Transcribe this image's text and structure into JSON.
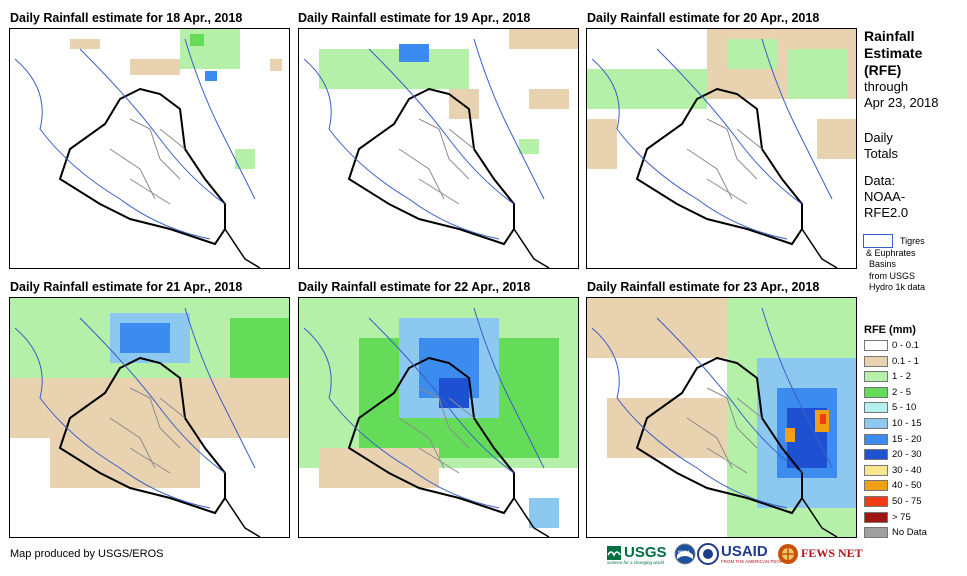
{
  "panels": [
    {
      "title": "Daily Rainfall estimate for 18 Apr., 2018"
    },
    {
      "title": "Daily Rainfall estimate for 19 Apr., 2018"
    },
    {
      "title": "Daily Rainfall estimate for 20 Apr., 2018"
    },
    {
      "title": "Daily Rainfall estimate for 21 Apr., 2018"
    },
    {
      "title": "Daily Rainfall estimate for 22 Apr., 2018"
    },
    {
      "title": "Daily Rainfall estimate for 23 Apr., 2018"
    }
  ],
  "sidebar": {
    "heading_line1": "Rainfall",
    "heading_line2": "Estimate",
    "heading_line3": "(RFE)",
    "through": "through",
    "date": "Apr 23, 2018",
    "daily": "Daily",
    "totals": "Totals",
    "data_label": "Data:",
    "data_src1": "NOAA-",
    "data_src2": "RFE2.0",
    "basin_line1": "Tigres",
    "basin_line2": "& Euphrates",
    "basin_line3": "Basins",
    "basin_line4": "from USGS",
    "basin_line5": "Hydro 1k data"
  },
  "legend": {
    "title": "RFE (mm)",
    "items": [
      {
        "label": "0 - 0.1",
        "color": "#ffffff"
      },
      {
        "label": "0.1 - 1",
        "color": "#e8d2b0"
      },
      {
        "label": "1 - 2",
        "color": "#b4f0a8"
      },
      {
        "label": "2 - 5",
        "color": "#64dc5a"
      },
      {
        "label": "5 - 10",
        "color": "#b4f0f0"
      },
      {
        "label": "10 - 15",
        "color": "#8cc8f0"
      },
      {
        "label": "15 - 20",
        "color": "#3c8cf0"
      },
      {
        "label": "20 - 30",
        "color": "#1e50d2"
      },
      {
        "label": "30 - 40",
        "color": "#fae68c"
      },
      {
        "label": "40 - 50",
        "color": "#f0a014"
      },
      {
        "label": "50 - 75",
        "color": "#f03c14"
      },
      {
        "label": "> 75",
        "color": "#a01414"
      },
      {
        "label": "No Data",
        "color": "#a0a0a0"
      }
    ]
  },
  "footer": {
    "credit": "Map produced by USGS/EROS",
    "logo_usgs": "USGS",
    "logo_usgs_tagline": "science for a changing world",
    "logo_noaa": "NOAA",
    "logo_usaid": "USAID",
    "logo_usaid_tagline": "FROM THE AMERICAN PEOPLE",
    "logo_fews": "FEWS NET"
  },
  "colors": {
    "country_border": "#000000",
    "province_border": "#8c8c8c",
    "rivers": "#3a5fc8"
  }
}
